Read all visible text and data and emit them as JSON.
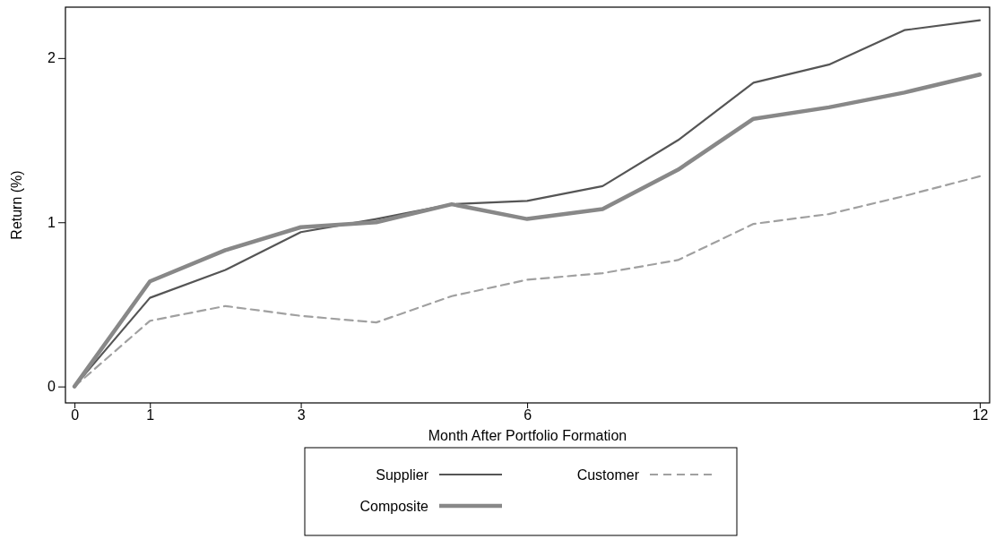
{
  "chart_data": {
    "type": "line",
    "xlabel": "Month After Portfolio Formation",
    "ylabel": "Return (%)",
    "x": [
      0,
      1,
      2,
      3,
      4,
      5,
      6,
      7,
      8,
      9,
      10,
      11,
      12
    ],
    "xlim": [
      -0.12,
      12.13
    ],
    "xticks": [
      0,
      1,
      3,
      6,
      12
    ],
    "ylim": [
      -0.1,
      2.31
    ],
    "yticks": [
      0,
      1,
      2
    ],
    "grid": false,
    "legend": "bottom",
    "marker": "none",
    "series": [
      {
        "name": "Supplier",
        "color": "#555555",
        "line_style": "solid",
        "values": [
          0,
          0.54,
          0.71,
          0.94,
          1.02,
          1.11,
          1.13,
          1.22,
          1.5,
          1.85,
          1.96,
          2.17,
          2.23
        ]
      },
      {
        "name": "Customer",
        "color": "#a0a0a0",
        "line_style": "dashed",
        "values": [
          0,
          0.4,
          0.49,
          0.43,
          0.39,
          0.55,
          0.65,
          0.69,
          0.77,
          0.99,
          1.05,
          1.16,
          1.28
        ]
      },
      {
        "name": "Composite",
        "color": "#888888",
        "line_style": "solid",
        "values": [
          0,
          0.64,
          0.83,
          0.97,
          1.0,
          1.11,
          1.02,
          1.08,
          1.32,
          1.63,
          1.7,
          1.79,
          1.9
        ]
      }
    ]
  }
}
